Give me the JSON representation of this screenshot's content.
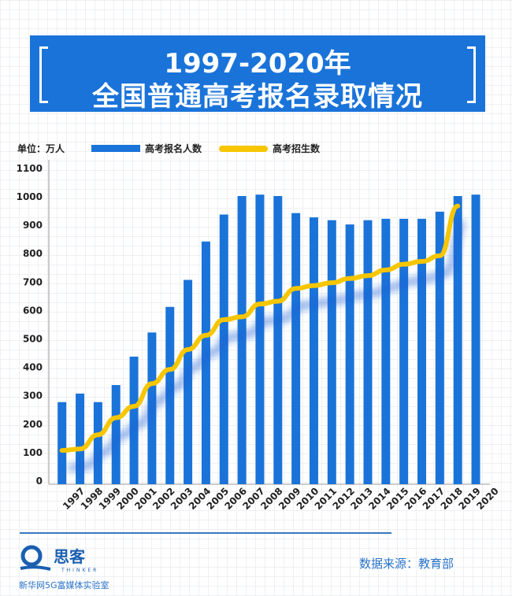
{
  "title": {
    "line1": "1997-2020年",
    "line2": "全国普通高考报名录取情况"
  },
  "legend": {
    "unit": "单位：万人",
    "bar": "高考报名人数",
    "line": "高考招生数"
  },
  "footer": {
    "source": "数据来源：教育部",
    "logo_text": "思客",
    "logo_en": "THINKER",
    "logo_sub": "新华网5G富媒体实验室"
  },
  "colors": {
    "bar": "#1a73d9",
    "line": "#f7c600",
    "title_bg": "#1a73d9"
  },
  "chart_data": {
    "type": "bar+line",
    "title": "1997-2020年 全国普通高考报名录取情况",
    "ylabel": "单位：万人",
    "ylim": [
      0,
      1100
    ],
    "yticks": [
      0,
      100,
      200,
      300,
      400,
      500,
      600,
      700,
      800,
      900,
      1000,
      1100
    ],
    "grid": true,
    "legend": "top",
    "categories": [
      "1997",
      "1998",
      "1999",
      "2000",
      "2001",
      "2002",
      "2003",
      "2004",
      "2005",
      "2006",
      "2007",
      "2008",
      "2009",
      "2010",
      "2011",
      "2012",
      "2013",
      "2014",
      "2015",
      "2016",
      "2017",
      "2018",
      "2019",
      "2020"
    ],
    "series": [
      {
        "name": "高考报名人数",
        "type": "bar",
        "values": [
          275,
          305,
          275,
          335,
          435,
          520,
          610,
          705,
          840,
          935,
          1000,
          1005,
          1000,
          940,
          925,
          915,
          900,
          915,
          920,
          920,
          920,
          945,
          1000,
          1005
        ]
      },
      {
        "name": "高考招生数",
        "type": "line",
        "values": [
          105,
          110,
          160,
          220,
          260,
          340,
          390,
          460,
          510,
          565,
          575,
          620,
          630,
          675,
          685,
          695,
          710,
          720,
          740,
          760,
          770,
          790,
          965,
          null
        ]
      }
    ]
  }
}
